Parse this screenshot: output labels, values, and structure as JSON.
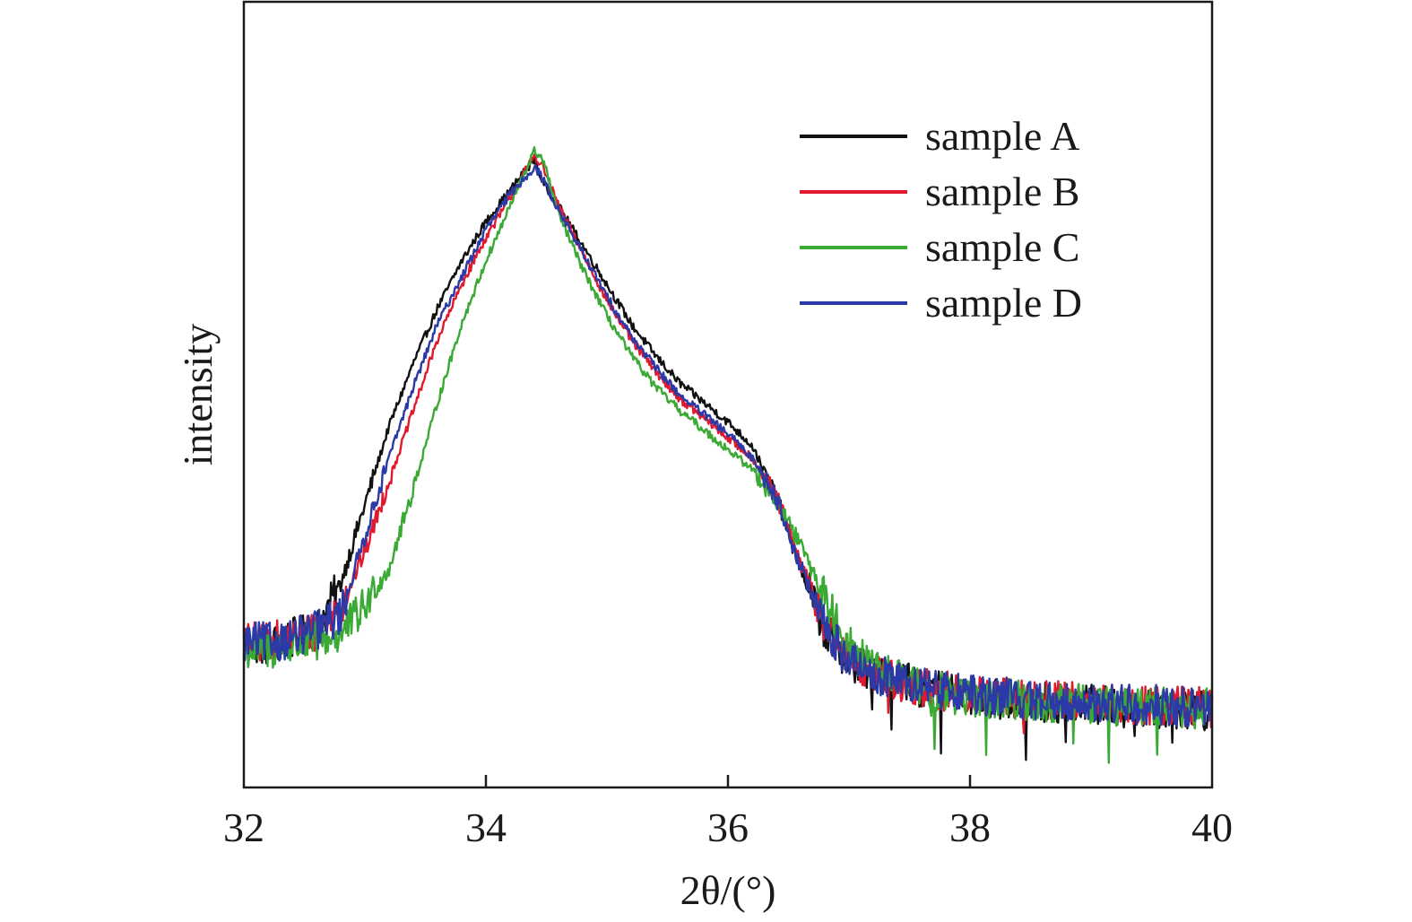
{
  "chart_data": {
    "type": "line",
    "xlabel": "2θ/(°)",
    "ylabel": "intensity",
    "xlim": [
      32,
      40
    ],
    "ylim": [
      0,
      100
    ],
    "x_ticks": [
      "32",
      "34",
      "36",
      "38",
      "40"
    ],
    "y_ticks_shown": false,
    "grid": false,
    "legend_position": "top-right",
    "series": [
      {
        "name": "sample A",
        "color": "#111111",
        "x": [
          32.0,
          32.2,
          32.4,
          32.6,
          32.8,
          33.0,
          33.2,
          33.4,
          33.6,
          33.8,
          34.0,
          34.2,
          34.4,
          34.47,
          34.6,
          34.8,
          35.0,
          35.2,
          35.4,
          35.6,
          35.8,
          36.0,
          36.2,
          36.4,
          36.6,
          36.8,
          37.0,
          37.2,
          37.4,
          37.6,
          37.8,
          38.0,
          38.5,
          39.0,
          39.5,
          40.0
        ],
        "y": [
          18.5,
          18.0,
          19.0,
          20.0,
          26.0,
          36.0,
          46.0,
          54.0,
          61.0,
          67.0,
          72.0,
          76.0,
          80.0,
          77.0,
          74.0,
          69.0,
          64.0,
          59.0,
          55.0,
          51.5,
          49.0,
          46.5,
          43.5,
          37.0,
          28.0,
          20.0,
          16.0,
          14.5,
          13.5,
          12.8,
          12.0,
          11.5,
          11.0,
          10.5,
          10.0,
          9.8
        ]
      },
      {
        "name": "sample B",
        "color": "#e0192e",
        "x": [
          32.0,
          32.2,
          32.4,
          32.6,
          32.8,
          33.0,
          33.2,
          33.4,
          33.6,
          33.8,
          34.0,
          34.2,
          34.4,
          34.47,
          34.6,
          34.8,
          35.0,
          35.2,
          35.4,
          35.6,
          35.8,
          36.0,
          36.2,
          36.4,
          36.6,
          36.8,
          37.0,
          37.2,
          37.4,
          37.6,
          37.8,
          38.0,
          38.5,
          39.0,
          39.5,
          40.0
        ],
        "y": [
          18.5,
          18.5,
          19.0,
          20.0,
          23.0,
          30.0,
          39.0,
          48.0,
          57.0,
          64.0,
          70.0,
          75.0,
          80.5,
          79.0,
          74.0,
          68.0,
          62.0,
          57.0,
          53.0,
          49.5,
          47.0,
          44.5,
          42.0,
          37.0,
          28.5,
          21.0,
          16.5,
          14.5,
          13.5,
          12.8,
          12.2,
          11.8,
          11.2,
          10.8,
          10.5,
          10.2
        ]
      },
      {
        "name": "sample C",
        "color": "#3aaa35",
        "x": [
          32.0,
          32.2,
          32.4,
          32.6,
          32.8,
          33.0,
          33.2,
          33.4,
          33.6,
          33.8,
          34.0,
          34.2,
          34.4,
          34.47,
          34.6,
          34.8,
          35.0,
          35.2,
          35.4,
          35.6,
          35.8,
          36.0,
          36.2,
          36.4,
          36.6,
          36.8,
          37.0,
          37.2,
          37.4,
          37.6,
          37.8,
          38.0,
          38.5,
          39.0,
          39.5,
          40.0
        ],
        "y": [
          17.5,
          17.5,
          18.0,
          18.5,
          19.5,
          23.0,
          28.0,
          38.0,
          49.0,
          59.0,
          67.0,
          74.0,
          81.0,
          80.0,
          73.0,
          66.0,
          60.0,
          55.0,
          51.0,
          48.0,
          45.5,
          43.0,
          40.5,
          36.5,
          31.0,
          24.0,
          18.0,
          15.0,
          13.8,
          12.8,
          12.0,
          11.5,
          11.0,
          10.6,
          10.2,
          10.0
        ]
      },
      {
        "name": "sample D",
        "color": "#2b3aa6",
        "x": [
          32.0,
          32.2,
          32.4,
          32.6,
          32.8,
          33.0,
          33.2,
          33.4,
          33.6,
          33.8,
          34.0,
          34.2,
          34.4,
          34.47,
          34.6,
          34.8,
          35.0,
          35.2,
          35.4,
          35.6,
          35.8,
          36.0,
          36.2,
          36.4,
          36.6,
          36.8,
          37.0,
          37.2,
          37.4,
          37.6,
          37.8,
          38.0,
          38.5,
          39.0,
          39.5,
          40.0
        ],
        "y": [
          18.5,
          18.5,
          19.0,
          20.0,
          22.0,
          32.0,
          42.0,
          51.0,
          59.0,
          65.0,
          71.0,
          75.5,
          79.0,
          77.5,
          73.5,
          68.0,
          62.5,
          57.5,
          53.5,
          50.0,
          47.5,
          45.0,
          42.0,
          37.0,
          28.0,
          20.5,
          16.0,
          14.5,
          13.5,
          12.8,
          12.2,
          11.8,
          11.2,
          10.8,
          10.5,
          10.2
        ]
      }
    ]
  }
}
